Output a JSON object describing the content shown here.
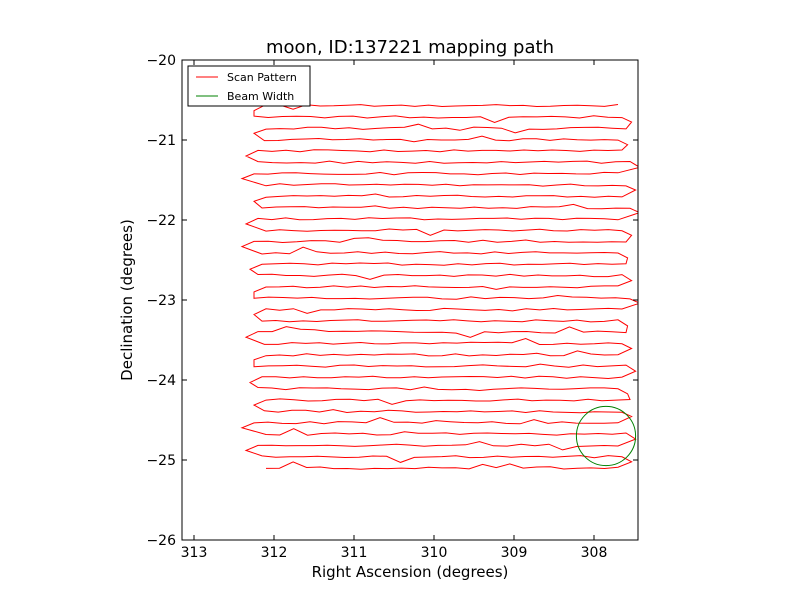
{
  "chart_data": {
    "type": "line",
    "title": "moon, ID:137221 mapping path",
    "xlabel": "Right Ascension (degrees)",
    "ylabel": "Declination (degrees)",
    "xlim": [
      313.15,
      307.45
    ],
    "ylim": [
      -26,
      -20
    ],
    "x_inverted": true,
    "xticks": [
      313,
      312,
      311,
      310,
      309,
      308
    ],
    "xtick_labels": [
      "313",
      "312",
      "311",
      "310",
      "309",
      "308"
    ],
    "yticks": [
      -20,
      -21,
      -22,
      -23,
      -24,
      -25,
      -26
    ],
    "ytick_labels": [
      "−20",
      "−21",
      "−22",
      "−23",
      "−24",
      "−25",
      "−26"
    ],
    "grid": false,
    "legend": {
      "position": "top-left",
      "entries": [
        "Scan Pattern",
        "Beam Width"
      ]
    },
    "series": [
      {
        "name": "Scan Pattern",
        "color": "#ff0000",
        "scan_rows": {
          "dec_start": -20.57,
          "dec_end": -25.1,
          "count": 33,
          "ra_east": [
            312.1,
            312.25,
            312.1,
            312.12,
            312.2,
            312.2,
            312.25,
            312.1,
            312.1,
            312.15,
            312.2,
            312.1,
            312.25,
            312.15,
            312.15,
            312.2,
            312.1,
            312.25,
            312.1,
            312.15,
            312.2,
            312.12,
            312.1,
            312.25,
            312.15,
            312.2,
            312.1,
            312.12,
            312.25,
            312.1,
            312.2,
            312.15,
            312.1
          ],
          "ra_west": [
            307.7,
            307.65,
            307.6,
            307.7,
            307.65,
            307.55,
            307.7,
            307.6,
            307.65,
            307.55,
            307.7,
            307.65,
            307.6,
            307.7,
            307.6,
            307.65,
            307.7,
            307.55,
            307.65,
            307.7,
            307.6,
            307.65,
            307.7,
            307.6,
            307.65,
            307.7,
            307.55,
            307.65,
            307.7,
            307.6,
            307.7,
            307.65,
            307.7
          ]
        }
      },
      {
        "name": "Beam Width",
        "color": "#008000",
        "circle": {
          "center_ra": 307.85,
          "center_dec": -24.7,
          "radius_deg": 0.37
        }
      }
    ]
  }
}
